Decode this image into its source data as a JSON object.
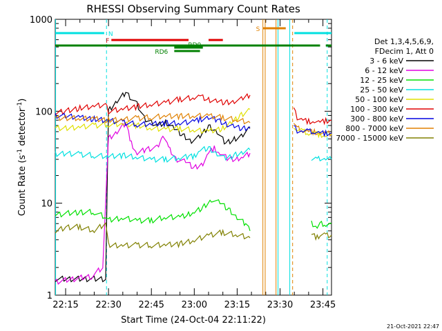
{
  "chart_data": {
    "type": "line",
    "title": "RHESSI Observing Summary Count Rates",
    "xlabel": "Start Time (24-Oct-04 22:11:22)",
    "ylabel": "Count Rate (s⁻¹ detector⁻¹)",
    "ylabel_main": "Count Rate (s",
    "ylabel_sup1": "-1",
    "ylabel_mid": " detector",
    "ylabel_sup2": "-1",
    "ylabel_end": ")",
    "y_scale": "log",
    "ylim": [
      1,
      1000
    ],
    "xlim_minutes": [
      11.37,
      108
    ],
    "x_ticks": [
      {
        "label": "22:15",
        "minute": 15
      },
      {
        "label": "22:30",
        "minute": 30
      },
      {
        "label": "22:45",
        "minute": 45
      },
      {
        "label": "23:00",
        "minute": 60
      },
      {
        "label": "23:15",
        "minute": 75
      },
      {
        "label": "23:30",
        "minute": 90
      },
      {
        "label": "23:45",
        "minute": 105
      }
    ],
    "y_ticks": [
      {
        "label": "1",
        "value": 1
      },
      {
        "label": "10",
        "value": 10
      },
      {
        "label": "100",
        "value": 100
      },
      {
        "label": "1000",
        "value": 1000
      }
    ],
    "legend_position": "right",
    "legend_header": [
      "Det 1,3,4,5,6,9,",
      "FDecim 1, Att 0"
    ],
    "series": [
      {
        "name": "3 - 6 keV",
        "color": "#000000",
        "x": [
          11.4,
          29,
          30,
          33,
          36,
          40,
          43,
          47,
          50,
          53,
          56,
          59,
          62,
          65,
          68,
          71,
          74,
          77,
          79.5
        ],
        "y": [
          1.5,
          1.5,
          100,
          130,
          160,
          120,
          80,
          70,
          75,
          65,
          55,
          48,
          52,
          68,
          60,
          45,
          50,
          55,
          65
        ]
      },
      {
        "name": "6 - 12 keV",
        "color": "#e000e0",
        "x": [
          11.4,
          24,
          28,
          30,
          33,
          36,
          38,
          40,
          43,
          47,
          49,
          51,
          54,
          57,
          60,
          63,
          65,
          67,
          69,
          72,
          75,
          77,
          79.5
        ],
        "y": [
          1.4,
          1.6,
          2,
          50,
          60,
          75,
          45,
          35,
          38,
          40,
          55,
          40,
          30,
          28,
          24,
          27,
          35,
          40,
          35,
          30,
          30,
          32,
          35
        ]
      },
      {
        "name": "12 - 25 keV",
        "color": "#00e000",
        "x": [
          11.4,
          20,
          25,
          29,
          30,
          35,
          40,
          45,
          50,
          55,
          58,
          60,
          63,
          66,
          69,
          72,
          75,
          78,
          79.5
        ],
        "y": [
          7.5,
          8,
          8,
          7,
          6.5,
          7,
          6.5,
          6.5,
          7,
          7,
          7.5,
          8,
          9,
          11,
          10,
          8.5,
          7,
          6,
          5
        ]
      },
      {
        "name": "25 - 50 keV",
        "color": "#00e0e0",
        "x": [
          11.4,
          15,
          20,
          25,
          30,
          35,
          40,
          45,
          50,
          55,
          58,
          60,
          62,
          65,
          68,
          71,
          74,
          77,
          79.5
        ],
        "y": [
          34,
          35,
          34,
          33,
          32,
          33,
          32,
          30,
          30,
          31,
          32,
          32,
          38,
          40,
          35,
          30,
          33,
          36,
          38
        ]
      },
      {
        "name": "50 - 100 keV",
        "color": "#e0e000",
        "x": [
          11.4,
          15,
          20,
          25,
          30,
          35,
          40,
          45,
          50,
          55,
          60,
          65,
          70,
          73,
          76,
          79.5
        ],
        "y": [
          65,
          65,
          68,
          70,
          72,
          72,
          70,
          66,
          64,
          65,
          62,
          60,
          65,
          75,
          90,
          105
        ]
      },
      {
        "name": "100 - 300 keV",
        "color": "#e00000",
        "x": [
          11.4,
          15,
          20,
          25,
          29,
          30,
          35,
          40,
          45,
          50,
          55,
          60,
          62,
          65,
          68,
          71,
          74,
          77,
          79.5
        ],
        "y": [
          95,
          100,
          108,
          115,
          118,
          100,
          105,
          112,
          120,
          125,
          135,
          140,
          145,
          132,
          128,
          125,
          130,
          135,
          150
        ]
      },
      {
        "name": "300 - 800 keV",
        "color": "#0000e0",
        "x": [
          11.4,
          15,
          20,
          25,
          30,
          35,
          40,
          45,
          50,
          55,
          60,
          62,
          65,
          68,
          71,
          74,
          77,
          79.5
        ],
        "y": [
          90,
          88,
          85,
          82,
          80,
          76,
          72,
          72,
          74,
          75,
          78,
          82,
          85,
          80,
          72,
          68,
          65,
          68
        ]
      },
      {
        "name": "800 - 7000 keV",
        "color": "#e08000",
        "x": [
          11.4,
          15,
          20,
          25,
          30,
          35,
          40,
          45,
          50,
          55,
          60,
          65,
          70,
          75,
          79.5
        ],
        "y": [
          85,
          85,
          83,
          82,
          80,
          82,
          84,
          86,
          88,
          88,
          90,
          90,
          85,
          80,
          75
        ]
      },
      {
        "name": "7000 - 15000 keV",
        "color": "#808000",
        "x": [
          11.4,
          15,
          20,
          25,
          29,
          30,
          35,
          40,
          45,
          50,
          55,
          60,
          65,
          70,
          75,
          79.5
        ],
        "y": [
          5,
          5.5,
          5.5,
          5,
          6,
          3.5,
          3.5,
          3.5,
          3.5,
          3.5,
          3.6,
          4,
          4.5,
          4.8,
          4.5,
          4.2
        ]
      }
    ],
    "series_late": [
      {
        "name": "100 - 300 keV",
        "color": "#e00000",
        "x": [
          94.8,
          96,
          98,
          100,
          102,
          104,
          106,
          108
        ],
        "y": [
          105,
          85,
          80,
          78,
          78,
          75,
          78,
          80
        ]
      },
      {
        "name": "800 - 7000 keV",
        "color": "#e08000",
        "x": [
          94.8,
          96,
          98,
          100,
          102,
          104,
          106,
          108
        ],
        "y": [
          75,
          65,
          62,
          60,
          60,
          58,
          57,
          57
        ]
      },
      {
        "name": "50 - 100 keV",
        "color": "#e0e000",
        "x": [
          94.8,
          96,
          98,
          100,
          102,
          104,
          106,
          108
        ],
        "y": [
          70,
          62,
          60,
          58,
          58,
          56,
          55,
          55
        ]
      },
      {
        "name": "300 - 800 keV",
        "color": "#0000e0",
        "x": [
          94.8,
          96,
          98,
          100,
          102,
          104,
          106,
          108
        ],
        "y": [
          68,
          62,
          60,
          60,
          60,
          58,
          58,
          58
        ]
      },
      {
        "name": "25 - 50 keV",
        "color": "#00e0e0",
        "x": [
          101,
          103,
          104,
          106,
          108
        ],
        "y": [
          30,
          30,
          31,
          30,
          30
        ]
      },
      {
        "name": "12 - 25 keV",
        "color": "#00e000",
        "x": [
          101,
          103,
          104,
          106,
          108
        ],
        "y": [
          6,
          5.5,
          6,
          6,
          6
        ]
      },
      {
        "name": "7000 - 15000 keV",
        "color": "#808000",
        "x": [
          101,
          103,
          104,
          106,
          108
        ],
        "y": [
          4.5,
          4.2,
          4.5,
          4.5,
          4.5
        ]
      }
    ],
    "flag_bars": [
      {
        "label": "N",
        "color": "#00e0e0",
        "segments": [
          [
            11.37,
            28.5
          ],
          [
            95,
            108
          ]
        ],
        "level": 1
      },
      {
        "label": "F",
        "color": "#e00000",
        "segments": [
          [
            31,
            58
          ],
          [
            65,
            70
          ]
        ],
        "level": 2
      },
      {
        "label": "S",
        "color": "#e08000",
        "segments": [
          [
            84,
            92
          ]
        ],
        "level": 0
      },
      {
        "label": "",
        "color": "#008000",
        "segments": [
          [
            11.37,
            104
          ],
          [
            106,
            108
          ]
        ],
        "level": 3
      },
      {
        "label": "RD0",
        "color": "#008000",
        "segments": [
          [
            53,
            63
          ]
        ],
        "level": 4
      },
      {
        "label": "RD6",
        "color": "#008000",
        "segments": [
          [
            53,
            62
          ]
        ],
        "level": 5
      }
    ],
    "vlines": [
      {
        "minute": 11.5,
        "color": "#00e0e0",
        "dashed": false
      },
      {
        "minute": 29.3,
        "color": "#00e0e0",
        "dashed": true
      },
      {
        "minute": 84.0,
        "color": "#e08000",
        "dashed": false
      },
      {
        "minute": 84.8,
        "color": "#e08000",
        "dashed": false
      },
      {
        "minute": 88.6,
        "color": "#e08000",
        "dashed": false
      },
      {
        "minute": 89.3,
        "color": "#00e0e0",
        "dashed": false
      },
      {
        "minute": 93.4,
        "color": "#00e0e0",
        "dashed": false
      },
      {
        "minute": 94.4,
        "color": "#e08000",
        "dashed": true
      },
      {
        "minute": 106.5,
        "color": "#00e0e0",
        "dashed": true
      }
    ],
    "timestamp": "21-Oct-2021 22:47"
  }
}
